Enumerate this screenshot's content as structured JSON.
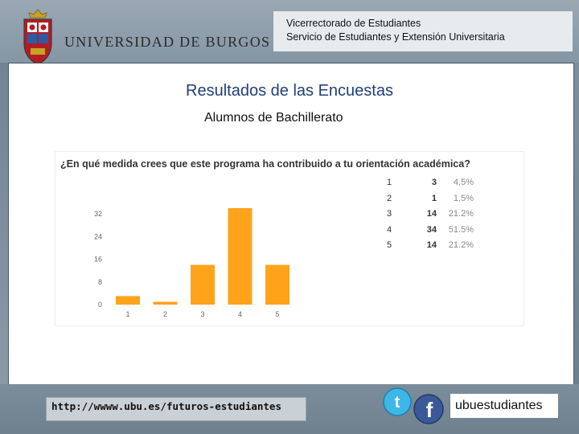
{
  "header": {
    "line1": "Vicerrectorado de Estudiantes",
    "line2": "Servicio de Estudiantes y Extensión Universitaria",
    "university_name": "UNIVERSIDAD DE BURGOS"
  },
  "main": {
    "title": "Resultados de las Encuestas",
    "subtitle": "Alumnos de Bachillerato"
  },
  "chart_data": {
    "type": "bar",
    "title": "¿En qué medida crees que este programa ha contribuido a tu orientación académica?",
    "categories": [
      "1",
      "2",
      "3",
      "4",
      "5"
    ],
    "values": [
      3,
      1,
      14,
      34,
      14
    ],
    "percentages": [
      "4.5%",
      "1.5%",
      "21.2%",
      "51.5%",
      "21.2%"
    ],
    "yticks": [
      0,
      8,
      16,
      24,
      32
    ],
    "ylim": [
      0,
      34
    ],
    "bar_color": "#ffa31a",
    "grid": false,
    "legend": "none"
  },
  "table": {
    "rows": [
      {
        "option": "1",
        "count": "3",
        "pct": "4.5%"
      },
      {
        "option": "2",
        "count": "1",
        "pct": "1.5%"
      },
      {
        "option": "3",
        "count": "14",
        "pct": "21.2%"
      },
      {
        "option": "4",
        "count": "34",
        "pct": "51.5%"
      },
      {
        "option": "5",
        "count": "14",
        "pct": "21.2%"
      }
    ]
  },
  "footer": {
    "url": "http://wwww.ubu.es/futuros-estudiantes",
    "handle": "ubuestudiantes",
    "icons": [
      "twitter-icon",
      "facebook-icon"
    ]
  },
  "colors": {
    "title": "#1f3f79",
    "frame": "#7c8d9b",
    "bar": "#ffa31a"
  }
}
